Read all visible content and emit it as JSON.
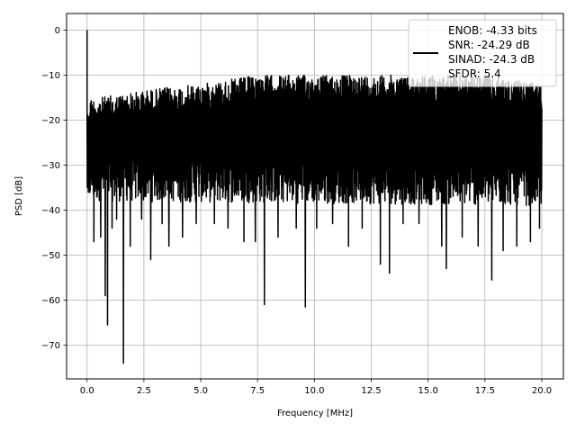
{
  "chart_data": {
    "type": "line",
    "title": "",
    "xlabel": "Frequency [MHz]",
    "ylabel": "PSD [dB]",
    "xlim": [
      -0.9,
      20.95
    ],
    "ylim": [
      -77.5,
      3.7
    ],
    "xticks": [
      0.0,
      2.5,
      5.0,
      7.5,
      10.0,
      12.5,
      15.0,
      17.5,
      20.0
    ],
    "xtick_labels": [
      "0.0",
      "2.5",
      "5.0",
      "7.5",
      "10.0",
      "12.5",
      "15.0",
      "17.5",
      "20.0"
    ],
    "yticks": [
      0,
      -10,
      -20,
      -30,
      -40,
      -50,
      -60,
      -70
    ],
    "ytick_labels": [
      "0",
      "−10",
      "−20",
      "−30",
      "−40",
      "−50",
      "−60",
      "−70"
    ],
    "grid": true,
    "legend_position": "top-right",
    "series": [
      {
        "name": "ENOB: -4.33 bits\nSNR: -24.29 dB\nSINAD: -24.3 dB\nSFDR: 5.4",
        "legend_lines": [
          "ENOB: -4.33 bits",
          "SNR: -24.29 dB",
          "SINAD: -24.3 dB",
          "SFDR: 5.4"
        ],
        "color": "#000000",
        "x_range": [
          0.0,
          20.0
        ],
        "noise_band": {
          "upper": {
            "x": [
              0.0,
              0.5,
              3.0,
              5.0,
              7.5,
              10.0,
              12.5,
              15.0,
              17.5,
              20.0
            ],
            "y": [
              -15,
              -15,
              -13,
              -12,
              -10,
              -10,
              -10,
              -10,
              -10,
              -12
            ]
          },
          "lower_typical": {
            "x": [
              0.0,
              20.0
            ],
            "y": [
              -36,
              -37
            ]
          }
        },
        "peaks": [
          {
            "x": 0.0,
            "y": 0.0
          },
          {
            "x": 0.0,
            "y": -8.0
          }
        ],
        "dips": [
          {
            "x": 0.05,
            "y": -36
          },
          {
            "x": 0.3,
            "y": -47
          },
          {
            "x": 0.6,
            "y": -46
          },
          {
            "x": 0.8,
            "y": -59
          },
          {
            "x": 0.9,
            "y": -65.5
          },
          {
            "x": 1.1,
            "y": -44
          },
          {
            "x": 1.3,
            "y": -42
          },
          {
            "x": 1.6,
            "y": -74
          },
          {
            "x": 1.9,
            "y": -48
          },
          {
            "x": 2.4,
            "y": -42
          },
          {
            "x": 2.8,
            "y": -51
          },
          {
            "x": 3.3,
            "y": -43
          },
          {
            "x": 3.6,
            "y": -48
          },
          {
            "x": 4.2,
            "y": -46
          },
          {
            "x": 4.8,
            "y": -43
          },
          {
            "x": 5.6,
            "y": -43
          },
          {
            "x": 6.2,
            "y": -44
          },
          {
            "x": 6.9,
            "y": -47
          },
          {
            "x": 7.4,
            "y": -47
          },
          {
            "x": 7.8,
            "y": -61
          },
          {
            "x": 8.4,
            "y": -46
          },
          {
            "x": 9.2,
            "y": -44
          },
          {
            "x": 9.6,
            "y": -61.5
          },
          {
            "x": 10.1,
            "y": -44
          },
          {
            "x": 10.8,
            "y": -43
          },
          {
            "x": 11.5,
            "y": -48
          },
          {
            "x": 12.1,
            "y": -44
          },
          {
            "x": 12.9,
            "y": -52
          },
          {
            "x": 13.3,
            "y": -54
          },
          {
            "x": 13.9,
            "y": -43
          },
          {
            "x": 14.6,
            "y": -43
          },
          {
            "x": 15.6,
            "y": -48
          },
          {
            "x": 15.8,
            "y": -53
          },
          {
            "x": 16.5,
            "y": -46
          },
          {
            "x": 17.2,
            "y": -48
          },
          {
            "x": 17.8,
            "y": -55.5
          },
          {
            "x": 18.3,
            "y": -49
          },
          {
            "x": 18.9,
            "y": -48
          },
          {
            "x": 19.5,
            "y": -47
          },
          {
            "x": 19.9,
            "y": -44
          }
        ]
      }
    ]
  }
}
